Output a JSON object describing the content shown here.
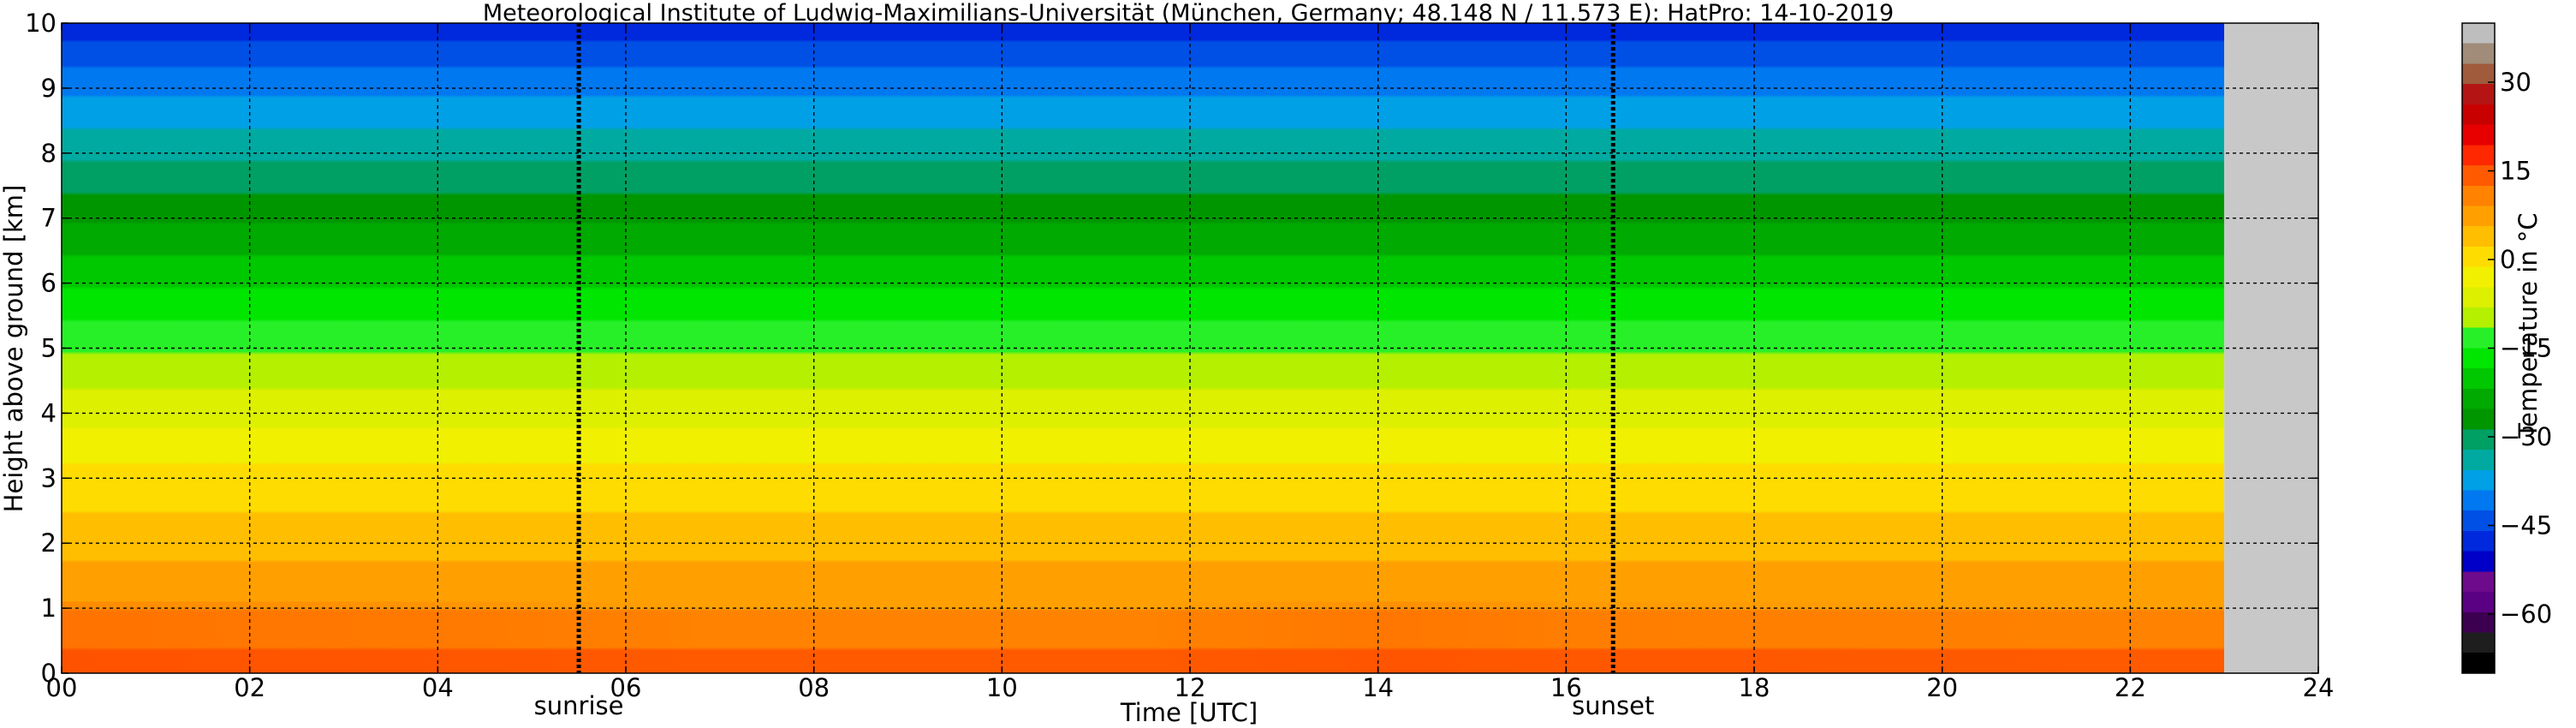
{
  "chart_data": {
    "type": "heatmap",
    "title": "Meteorological Institute of Ludwig-Maximilians-Universität (München, Germany; 48.148 N / 11.573 E):    HatPro: 14-10-2019",
    "xlabel": "Time [UTC]",
    "ylabel": "Height above ground [km]",
    "xlim": [
      0,
      24
    ],
    "ylim": [
      0,
      10
    ],
    "x_ticks": [
      0,
      2,
      4,
      6,
      8,
      10,
      12,
      14,
      16,
      18,
      20,
      22,
      24
    ],
    "x_tick_labels": [
      "00",
      "02",
      "04",
      "06",
      "08",
      "10",
      "12",
      "14",
      "16",
      "18",
      "20",
      "22",
      "24"
    ],
    "y_ticks": [
      0,
      1,
      2,
      3,
      4,
      5,
      6,
      7,
      8,
      9,
      10
    ],
    "y_tick_labels": [
      "0",
      "1",
      "2",
      "3",
      "4",
      "5",
      "6",
      "7",
      "8",
      "9",
      "10"
    ],
    "grid": true,
    "data_end_time": 23.0,
    "no_data_color": "#c8c8c8",
    "markers": [
      {
        "label": "sunrise",
        "time": 5.5
      },
      {
        "label": "sunset",
        "time": 16.5
      }
    ],
    "colorbar": {
      "label": "Temperature in °C",
      "range": [
        -70,
        40
      ],
      "ticks": [
        -60,
        -45,
        -30,
        -15,
        0,
        15,
        30
      ],
      "tick_labels": [
        "−60",
        "−45",
        "−30",
        "−15",
        "0",
        "15",
        "30"
      ],
      "colors": [
        "#000000",
        "#1e1e1e",
        "#3c0050",
        "#5a0082",
        "#6e0a8c",
        "#0000c8",
        "#0028dc",
        "#0050e6",
        "#0078f0",
        "#00a0e6",
        "#00aaa0",
        "#00a064",
        "#009600",
        "#00aa00",
        "#00c800",
        "#00e600",
        "#28f028",
        "#b4f000",
        "#dcf000",
        "#f0f000",
        "#ffdc00",
        "#ffbe00",
        "#ffa000",
        "#ff8200",
        "#ff5a00",
        "#ff2800",
        "#e60000",
        "#c80000",
        "#b41414",
        "#a05a3c",
        "#a08c78",
        "#bebebe"
      ]
    },
    "temperature_profile": {
      "height_km": [
        0,
        0.5,
        1,
        1.5,
        2,
        3,
        4,
        5,
        6,
        7,
        8,
        9,
        10
      ],
      "temp_c": [
        14,
        12,
        9,
        7,
        4,
        0,
        -6,
        -12,
        -19,
        -26,
        -33,
        -40,
        -48
      ]
    }
  }
}
